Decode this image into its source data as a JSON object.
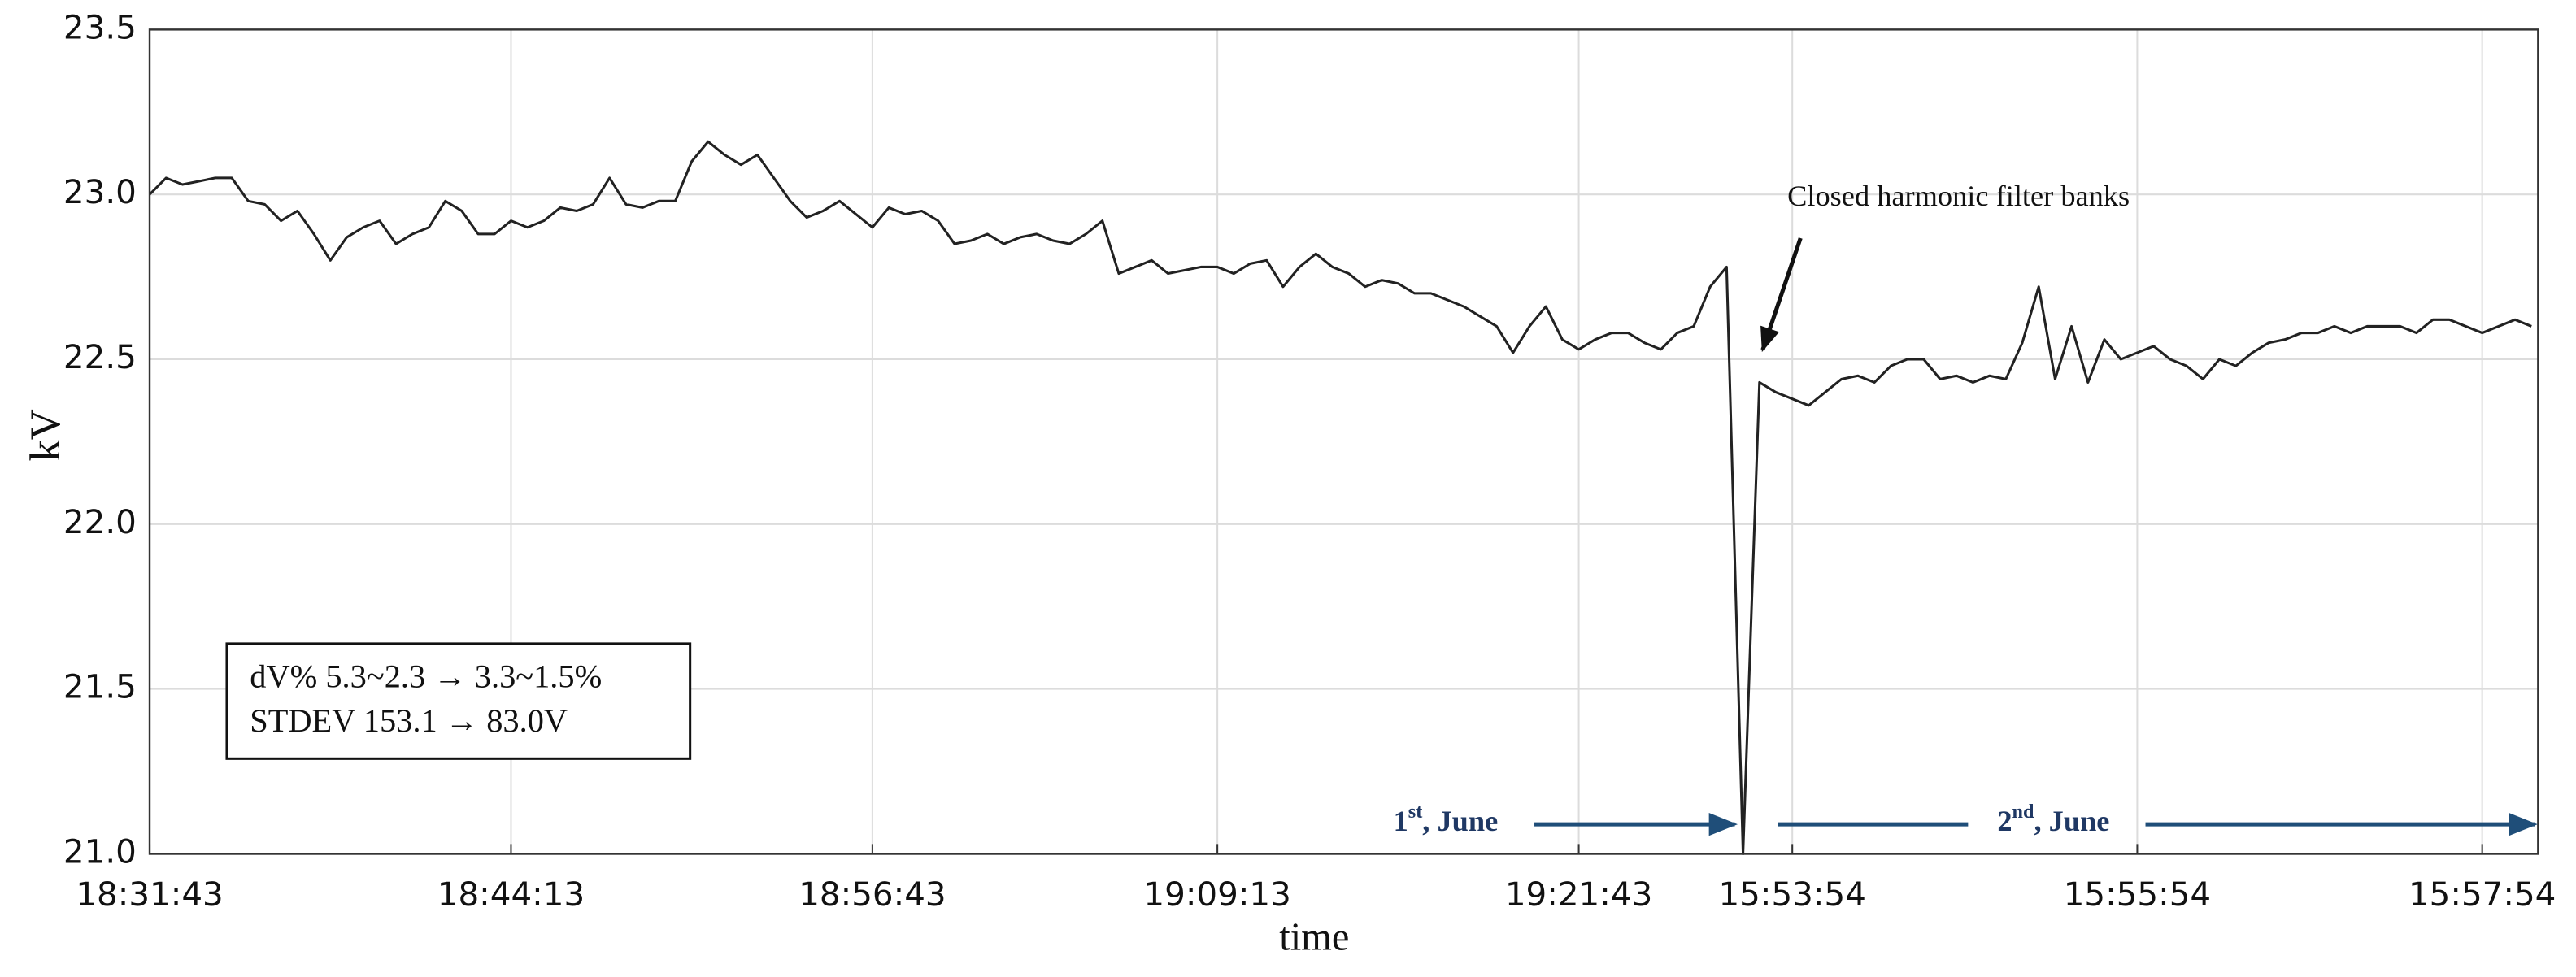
{
  "chart_data": {
    "type": "line",
    "x_label": "time",
    "y_label": "kV",
    "categories": [
      "18:31:43",
      null,
      null,
      null,
      null,
      null,
      null,
      null,
      null,
      null,
      null,
      null,
      null,
      null,
      null,
      null,
      null,
      null,
      null,
      null,
      null,
      null,
      "18:44:13",
      null,
      null,
      null,
      null,
      null,
      null,
      null,
      null,
      null,
      null,
      null,
      null,
      null,
      null,
      null,
      null,
      null,
      null,
      null,
      null,
      null,
      "18:56:43",
      null,
      null,
      null,
      null,
      null,
      null,
      null,
      null,
      null,
      null,
      null,
      null,
      null,
      null,
      null,
      null,
      null,
      null,
      null,
      null,
      "19:09:13",
      null,
      null,
      null,
      null,
      null,
      null,
      null,
      null,
      null,
      null,
      null,
      null,
      null,
      null,
      null,
      null,
      null,
      null,
      null,
      null,
      null,
      "19:21:43",
      null,
      null,
      null,
      null,
      null,
      null,
      null,
      null,
      null,
      null,
      null,
      null,
      "15:53:54",
      null,
      null,
      null,
      null,
      null,
      null,
      null,
      null,
      null,
      null,
      null,
      null,
      null,
      null,
      null,
      null,
      null,
      null,
      null,
      null,
      "15:55:54",
      null,
      null,
      null,
      null,
      null,
      null,
      null,
      null,
      null,
      null,
      null,
      null,
      null,
      null,
      null,
      null,
      null,
      null,
      null,
      null,
      "15:57:54",
      null,
      null,
      null
    ],
    "series": [
      {
        "name": "kV",
        "color": "#222222",
        "values": [
          23.0,
          23.05,
          23.03,
          23.04,
          23.05,
          23.05,
          22.98,
          22.97,
          22.92,
          22.95,
          22.88,
          22.8,
          22.87,
          22.9,
          22.92,
          22.85,
          22.88,
          22.9,
          22.98,
          22.95,
          22.88,
          22.88,
          22.92,
          22.9,
          22.92,
          22.96,
          22.95,
          22.97,
          23.05,
          22.97,
          22.96,
          22.98,
          22.98,
          23.1,
          23.16,
          23.12,
          23.09,
          23.12,
          23.05,
          22.98,
          22.93,
          22.95,
          22.98,
          22.94,
          22.9,
          22.96,
          22.94,
          22.95,
          22.92,
          22.85,
          22.86,
          22.88,
          22.85,
          22.87,
          22.88,
          22.86,
          22.85,
          22.88,
          22.92,
          22.76,
          22.78,
          22.8,
          22.76,
          22.77,
          22.78,
          22.78,
          22.76,
          22.79,
          22.8,
          22.72,
          22.78,
          22.82,
          22.78,
          22.76,
          22.72,
          22.74,
          22.73,
          22.7,
          22.7,
          22.68,
          22.66,
          22.63,
          22.6,
          22.52,
          22.6,
          22.66,
          22.56,
          22.53,
          22.56,
          22.58,
          22.58,
          22.55,
          22.53,
          22.58,
          22.6,
          22.72,
          22.78,
          21.0,
          22.43,
          22.4,
          22.38,
          22.36,
          22.4,
          22.44,
          22.45,
          22.43,
          22.48,
          22.5,
          22.5,
          22.44,
          22.45,
          22.43,
          22.45,
          22.44,
          22.55,
          22.72,
          22.44,
          22.6,
          22.43,
          22.56,
          22.5,
          22.52,
          22.54,
          22.5,
          22.48,
          22.44,
          22.5,
          22.48,
          22.52,
          22.55,
          22.56,
          22.58,
          22.58,
          22.6,
          22.58,
          22.6,
          22.6,
          22.6,
          22.58,
          22.62,
          22.62,
          22.6,
          22.58,
          22.6,
          22.62,
          22.6
        ]
      }
    ],
    "ylim": [
      21,
      23.5
    ],
    "yticks": [
      {
        "value": 21,
        "label": "21.0"
      },
      21.5,
      {
        "value": 22,
        "label": "22.0"
      },
      22.5,
      {
        "value": 23,
        "label": "23.0"
      },
      23.5
    ],
    "grid": true,
    "annotation": "Closed harmonic filter banks",
    "stats_box": [
      "dV% 5.3~2.3 → 3.3~1.5%",
      "STDEV 153.1 → 83.0V"
    ],
    "periods": [
      {
        "number": "1",
        "suffix": "st",
        "rest": ", June"
      },
      {
        "number": "2",
        "suffix": "nd",
        "rest": ", June"
      }
    ]
  }
}
